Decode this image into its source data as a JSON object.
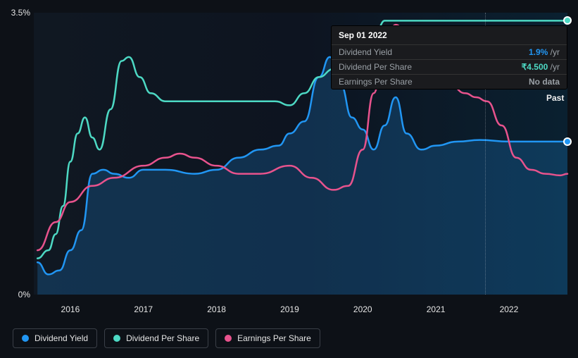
{
  "chart": {
    "type": "line",
    "background_gradient": [
      "#101822",
      "#0a2030"
    ],
    "xlim": [
      2015.5,
      2022.8
    ],
    "ylim": [
      0,
      3.5
    ],
    "ylabel_suffix": "%",
    "yticks": [
      {
        "v": 0,
        "label": "0%"
      },
      {
        "v": 3.5,
        "label": "3.5%"
      }
    ],
    "xticks": [
      {
        "v": 2016,
        "label": "2016"
      },
      {
        "v": 2017,
        "label": "2017"
      },
      {
        "v": 2018,
        "label": "2018"
      },
      {
        "v": 2019,
        "label": "2019"
      },
      {
        "v": 2020,
        "label": "2020"
      },
      {
        "v": 2021,
        "label": "2021"
      },
      {
        "v": 2022,
        "label": "2022"
      }
    ],
    "past_marker": {
      "x": 2021.67,
      "label": "Past"
    },
    "line_width": 2.5,
    "series": [
      {
        "id": "dividend_yield",
        "label": "Dividend Yield",
        "color": "#2196f3",
        "area_fill": true,
        "area_opacity": 0.22,
        "end_marker": true,
        "points": [
          [
            2015.55,
            0.4
          ],
          [
            2015.7,
            0.25
          ],
          [
            2015.85,
            0.3
          ],
          [
            2016.0,
            0.55
          ],
          [
            2016.15,
            0.8
          ],
          [
            2016.3,
            1.5
          ],
          [
            2016.45,
            1.55
          ],
          [
            2016.6,
            1.5
          ],
          [
            2016.8,
            1.45
          ],
          [
            2017.0,
            1.55
          ],
          [
            2017.3,
            1.55
          ],
          [
            2017.7,
            1.5
          ],
          [
            2018.0,
            1.55
          ],
          [
            2018.3,
            1.7
          ],
          [
            2018.6,
            1.8
          ],
          [
            2018.85,
            1.85
          ],
          [
            2019.0,
            2.0
          ],
          [
            2019.2,
            2.15
          ],
          [
            2019.4,
            2.7
          ],
          [
            2019.55,
            2.95
          ],
          [
            2019.7,
            2.6
          ],
          [
            2019.85,
            2.2
          ],
          [
            2020.0,
            2.05
          ],
          [
            2020.15,
            1.8
          ],
          [
            2020.3,
            2.1
          ],
          [
            2020.45,
            2.45
          ],
          [
            2020.6,
            2.0
          ],
          [
            2020.8,
            1.8
          ],
          [
            2021.0,
            1.85
          ],
          [
            2021.3,
            1.9
          ],
          [
            2021.6,
            1.92
          ],
          [
            2022.0,
            1.9
          ],
          [
            2022.4,
            1.9
          ],
          [
            2022.8,
            1.9
          ]
        ]
      },
      {
        "id": "dividend_per_share",
        "label": "Dividend Per Share",
        "color": "#4dd9c4",
        "area_fill": false,
        "end_marker": true,
        "points": [
          [
            2015.55,
            0.45
          ],
          [
            2015.7,
            0.55
          ],
          [
            2015.8,
            0.75
          ],
          [
            2015.9,
            1.1
          ],
          [
            2016.0,
            1.65
          ],
          [
            2016.1,
            2.0
          ],
          [
            2016.2,
            2.2
          ],
          [
            2016.3,
            1.95
          ],
          [
            2016.4,
            1.8
          ],
          [
            2016.55,
            2.3
          ],
          [
            2016.7,
            2.9
          ],
          [
            2016.8,
            2.95
          ],
          [
            2016.95,
            2.7
          ],
          [
            2017.1,
            2.5
          ],
          [
            2017.3,
            2.4
          ],
          [
            2017.5,
            2.4
          ],
          [
            2018.0,
            2.4
          ],
          [
            2018.5,
            2.4
          ],
          [
            2018.8,
            2.4
          ],
          [
            2019.0,
            2.35
          ],
          [
            2019.2,
            2.5
          ],
          [
            2019.4,
            2.7
          ],
          [
            2019.6,
            2.8
          ],
          [
            2019.8,
            2.8
          ],
          [
            2020.0,
            3.0
          ],
          [
            2020.2,
            3.3
          ],
          [
            2020.3,
            3.4
          ],
          [
            2020.4,
            3.4
          ],
          [
            2021.0,
            3.4
          ],
          [
            2022.0,
            3.4
          ],
          [
            2022.8,
            3.4
          ]
        ]
      },
      {
        "id": "earnings_per_share",
        "label": "Earnings Per Share",
        "color": "#e8538d",
        "area_fill": false,
        "end_marker": false,
        "points": [
          [
            2015.55,
            0.55
          ],
          [
            2015.8,
            0.9
          ],
          [
            2016.0,
            1.15
          ],
          [
            2016.3,
            1.35
          ],
          [
            2016.6,
            1.45
          ],
          [
            2017.0,
            1.6
          ],
          [
            2017.3,
            1.7
          ],
          [
            2017.5,
            1.75
          ],
          [
            2017.7,
            1.7
          ],
          [
            2018.0,
            1.6
          ],
          [
            2018.3,
            1.5
          ],
          [
            2018.6,
            1.5
          ],
          [
            2019.0,
            1.6
          ],
          [
            2019.3,
            1.45
          ],
          [
            2019.6,
            1.3
          ],
          [
            2019.8,
            1.35
          ],
          [
            2020.0,
            1.8
          ],
          [
            2020.15,
            2.5
          ],
          [
            2020.3,
            3.1
          ],
          [
            2020.45,
            3.35
          ],
          [
            2020.6,
            3.25
          ],
          [
            2020.8,
            2.95
          ],
          [
            2021.0,
            2.7
          ],
          [
            2021.2,
            2.6
          ],
          [
            2021.4,
            2.5
          ],
          [
            2021.55,
            2.45
          ],
          [
            2021.7,
            2.4
          ],
          [
            2021.9,
            2.1
          ],
          [
            2022.1,
            1.7
          ],
          [
            2022.3,
            1.55
          ],
          [
            2022.5,
            1.5
          ],
          [
            2022.7,
            1.48
          ],
          [
            2022.8,
            1.5
          ]
        ]
      }
    ]
  },
  "tooltip": {
    "title": "Sep 01 2022",
    "rows": [
      {
        "label": "Dividend Yield",
        "value": "1.9%",
        "suffix": " /yr",
        "value_color": "#2196f3"
      },
      {
        "label": "Dividend Per Share",
        "value": "₹4.500",
        "suffix": " /yr",
        "value_color": "#4dd9c4"
      },
      {
        "label": "Earnings Per Share",
        "value": "No data",
        "suffix": "",
        "value_color": "#9aa0a6"
      }
    ]
  },
  "legend": {
    "items": [
      {
        "label": "Dividend Yield",
        "color": "#2196f3"
      },
      {
        "label": "Dividend Per Share",
        "color": "#4dd9c4"
      },
      {
        "label": "Earnings Per Share",
        "color": "#e8538d"
      }
    ]
  },
  "text_color": "#e5e5e5",
  "axis_fontsize": 12
}
